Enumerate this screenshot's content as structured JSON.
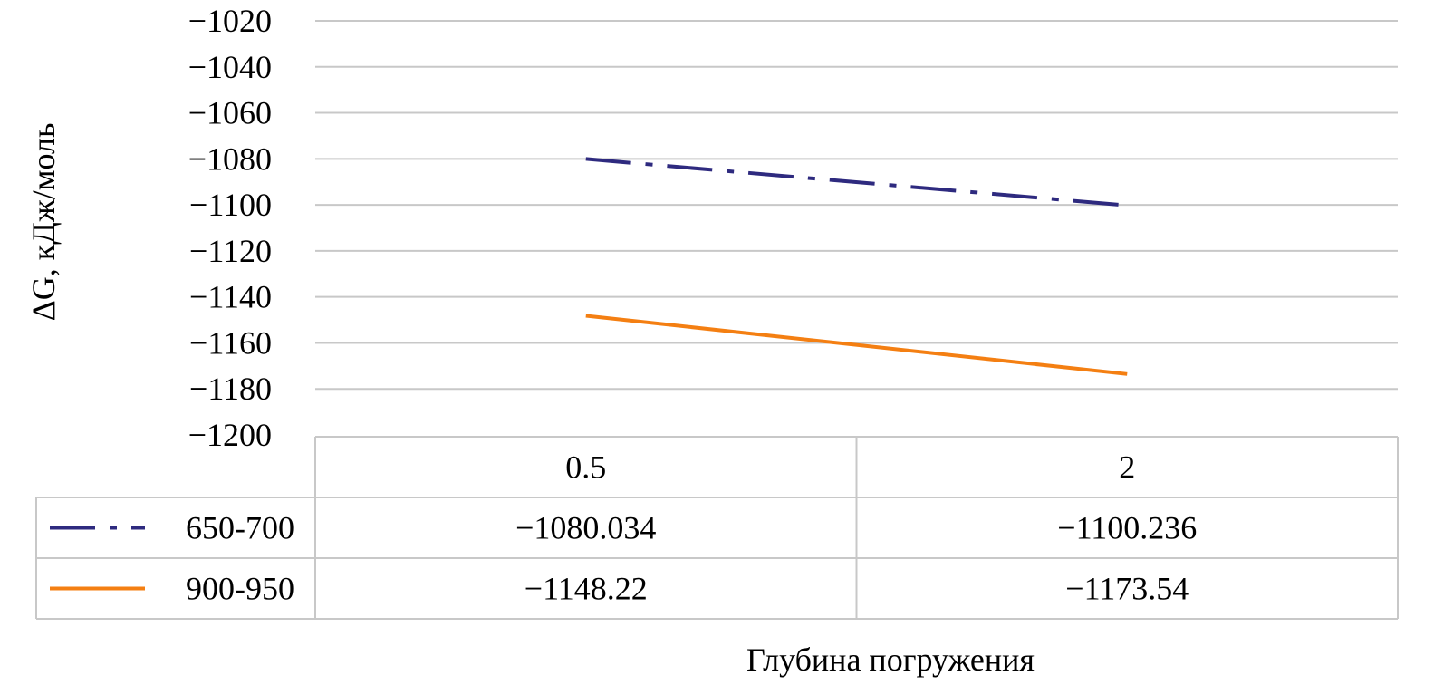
{
  "chart_data": {
    "type": "line",
    "title": "",
    "xlabel": "Глубина погружения",
    "ylabel": "ΔG, кДж/моль",
    "ylim": [
      -1200,
      -1020
    ],
    "y_ticks": [
      -1020,
      -1040,
      -1060,
      -1080,
      -1100,
      -1120,
      -1140,
      -1160,
      -1180,
      -1200
    ],
    "y_tick_labels": [
      "−1020",
      "−1040",
      "−1060",
      "−1080",
      "−1100",
      "−1120",
      "−1140",
      "−1160",
      "−1180",
      "−1200"
    ],
    "grid": true,
    "legend": "data-table-left",
    "categories": [
      "0.5",
      "2"
    ],
    "series": [
      {
        "name": "650-700",
        "values": [
          -1080.034,
          -1100.236
        ],
        "labels": [
          "−1080.034",
          "−1100.236"
        ],
        "color": "#2e2a7f",
        "dash": "dash-dot"
      },
      {
        "name": "900-950",
        "values": [
          -1148.22,
          -1173.54
        ],
        "labels": [
          "−1148.22",
          "−1173.54"
        ],
        "color": "#f47f12",
        "dash": "solid"
      }
    ]
  }
}
